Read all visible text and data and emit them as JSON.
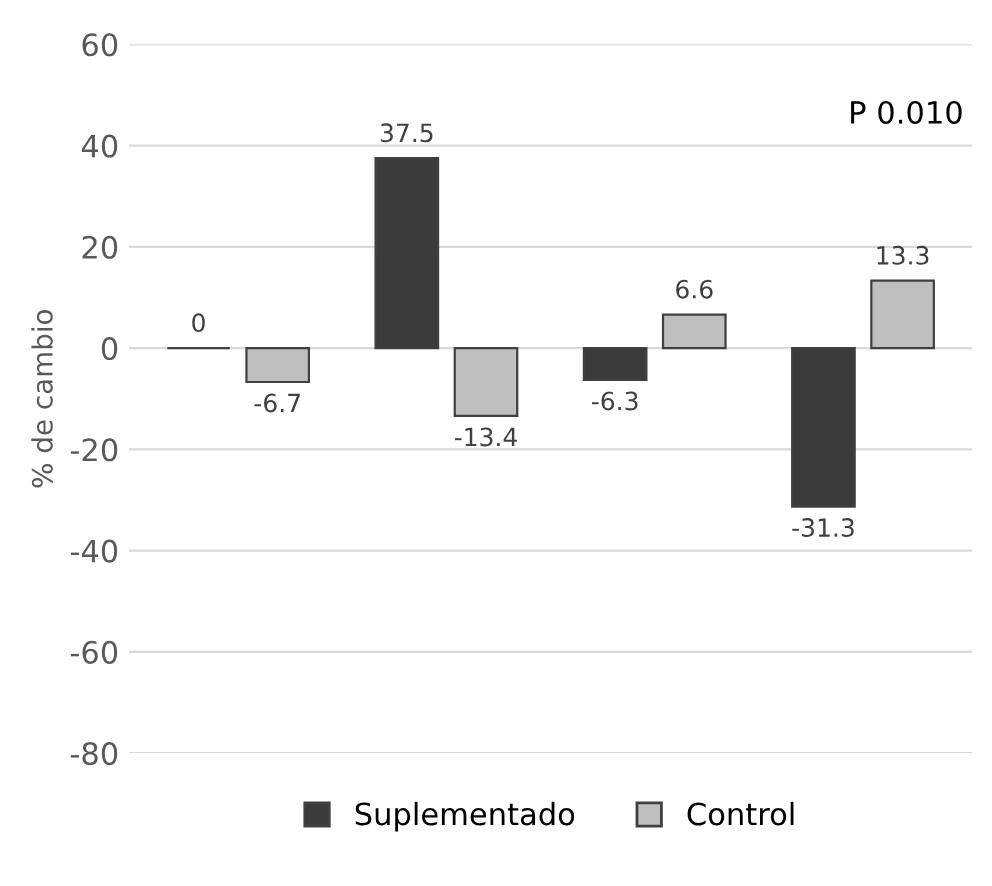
{
  "chart_data": {
    "type": "bar",
    "ylabel": "% de cambio",
    "categories": [
      null,
      null,
      null,
      null
    ],
    "series": [
      {
        "name": "Suplementado",
        "color": "#3b3b3b",
        "values": [
          0,
          37.5,
          -6.3,
          -31.3
        ]
      },
      {
        "name": "Control",
        "color": "#bfbfbf",
        "values": [
          -6.7,
          -13.4,
          6.6,
          13.3
        ]
      }
    ],
    "ylim": [
      -80,
      60
    ],
    "yticks": [
      -80,
      -60,
      -40,
      -20,
      0,
      20,
      40,
      60
    ],
    "grid": "y",
    "legend": "bottom",
    "data_labels": true,
    "annotations": [
      "P 0.010"
    ]
  }
}
